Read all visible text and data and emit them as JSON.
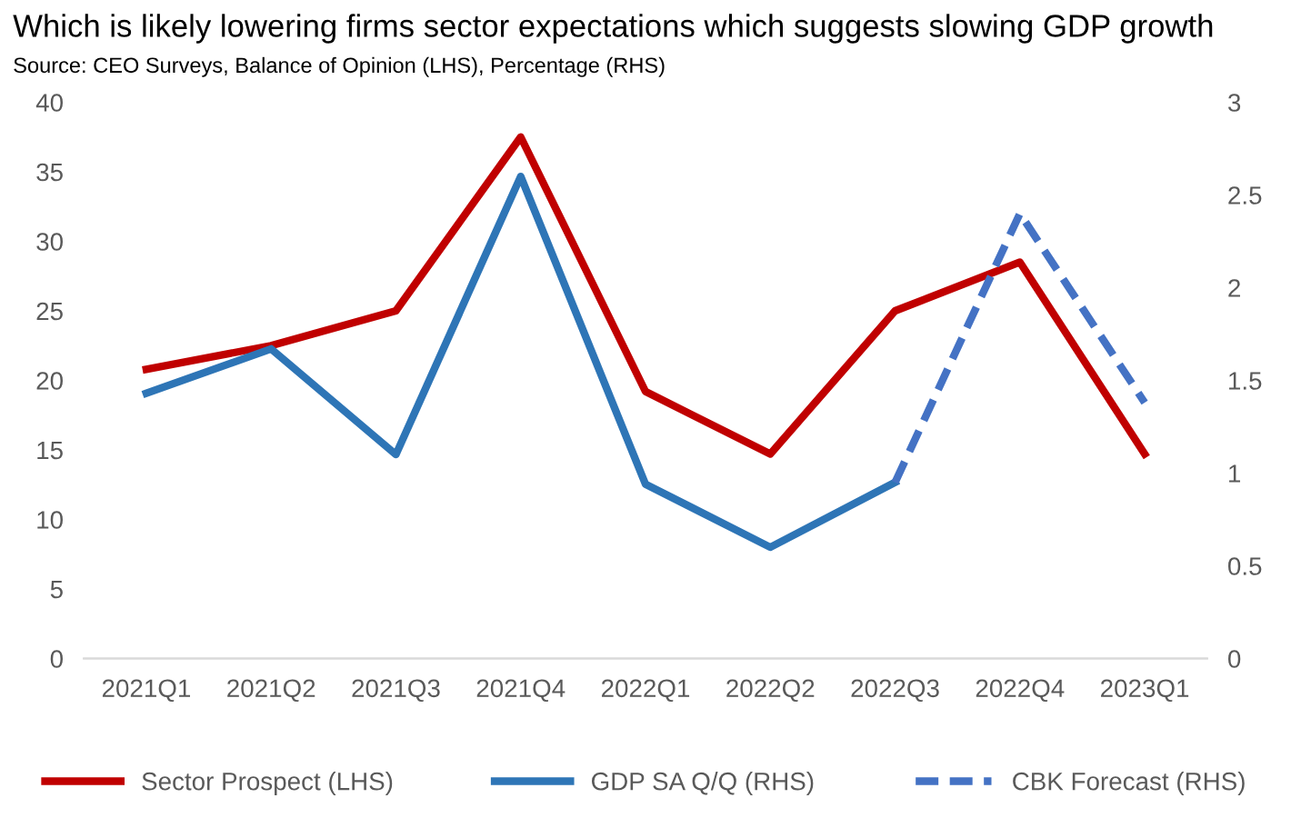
{
  "chart_data": {
    "type": "line",
    "title": "Which is likely lowering firms sector expectations which suggests slowing GDP growth",
    "subtitle": "Source: CEO Surveys, Balance of Opinion (LHS), Percentage (RHS)",
    "categories": [
      "2021Q1",
      "2021Q2",
      "2021Q3",
      "2021Q4",
      "2022Q1",
      "2022Q2",
      "2022Q3",
      "2022Q4",
      "2023Q1"
    ],
    "series": [
      {
        "name": "Sector Prospect (LHS)",
        "color": "#c00000",
        "values": [
          20.8,
          22.5,
          25,
          37.5,
          19.2,
          14.7,
          25,
          28.5,
          14.7
        ]
      },
      {
        "name": "GDP SA Q/Q (RHS)",
        "color": "#2e75b6",
        "axis": "y2",
        "values": [
          1.43,
          1.67,
          1.1,
          2.6,
          0.94,
          0.6,
          0.95,
          null,
          null
        ]
      },
      {
        "name": "CBK Forecast (RHS)",
        "color": "#4472c4",
        "axis": "y2",
        "line_style": "dashed",
        "values": [
          null,
          null,
          null,
          null,
          null,
          null,
          0.95,
          2.4,
          1.38
        ]
      }
    ],
    "ylim": [
      0,
      40
    ],
    "yticks": [
      0,
      5,
      10,
      15,
      20,
      25,
      30,
      35,
      40
    ],
    "y2lim": [
      0,
      3
    ],
    "y2ticks": [
      0,
      0.5,
      1,
      1.5,
      2,
      2.5,
      3
    ],
    "grid": false,
    "legend": "bottom",
    "line_style": "solid",
    "marker": "none"
  }
}
